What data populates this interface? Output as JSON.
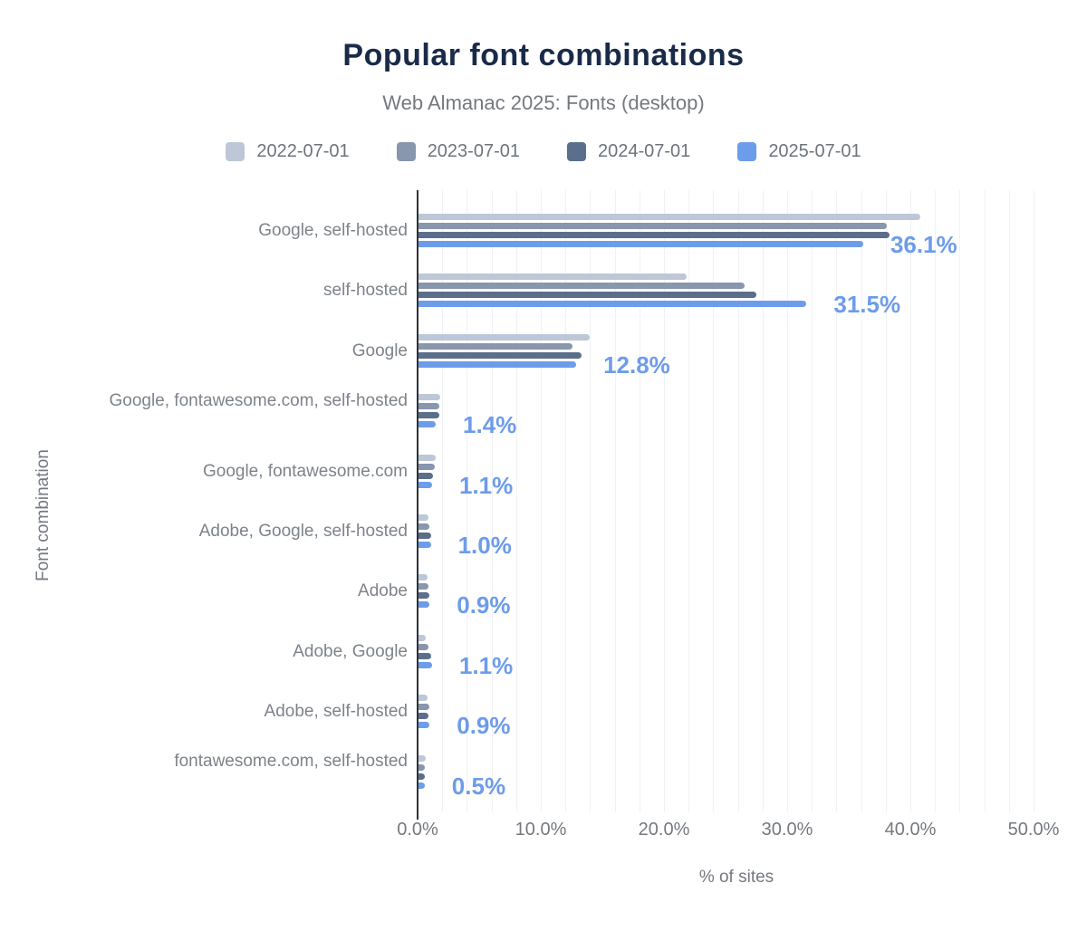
{
  "header": {
    "title": "Popular font combinations",
    "subtitle": "Web Almanac 2025: Fonts (desktop)"
  },
  "chart_data": {
    "type": "bar",
    "orientation": "horizontal",
    "title": "Popular font combinations",
    "subtitle": "Web Almanac 2025: Fonts (desktop)",
    "xlabel": "% of sites",
    "ylabel": "Font combination",
    "xlim": [
      0,
      51.5
    ],
    "x_ticks": [
      "0.0%",
      "10.0%",
      "20.0%",
      "30.0%",
      "40.0%",
      "50.0%"
    ],
    "grid": "minor vertical gridlines every 2%",
    "legend_position": "top",
    "categories": [
      "Google, self-hosted",
      "self-hosted",
      "Google",
      "Google, fontawesome.com, self-hosted",
      "Google, fontawesome.com",
      "Adobe, Google, self-hosted",
      "Adobe",
      "Adobe, Google",
      "Adobe, self-hosted",
      "fontawesome.com, self-hosted"
    ],
    "series": [
      {
        "name": "2022-07-01",
        "color": "#bdc7d8",
        "values": [
          40.7,
          21.8,
          13.9,
          1.8,
          1.4,
          0.8,
          0.7,
          0.6,
          0.7,
          0.6
        ]
      },
      {
        "name": "2023-07-01",
        "color": "#8896ae",
        "values": [
          38.0,
          26.5,
          12.5,
          1.7,
          1.3,
          0.9,
          0.8,
          0.8,
          0.9,
          0.5
        ]
      },
      {
        "name": "2024-07-01",
        "color": "#5b6e8c",
        "values": [
          38.2,
          27.4,
          13.2,
          1.7,
          1.2,
          1.0,
          0.9,
          1.0,
          0.8,
          0.5
        ]
      },
      {
        "name": "2025-07-01",
        "color": "#6d9cea",
        "values": [
          36.1,
          31.5,
          12.8,
          1.4,
          1.1,
          1.0,
          0.9,
          1.1,
          0.9,
          0.5
        ],
        "data_labels": [
          "36.1%",
          "31.5%",
          "12.8%",
          "1.4%",
          "1.1%",
          "1.0%",
          "0.9%",
          "1.1%",
          "0.9%",
          "0.5%"
        ]
      }
    ],
    "colors": {
      "title": "#1a2b49",
      "muted_text": "#75797f",
      "axis_line": "#2f3338",
      "gridline": "#f1f2f5",
      "value_label": "#6d9cea"
    }
  }
}
